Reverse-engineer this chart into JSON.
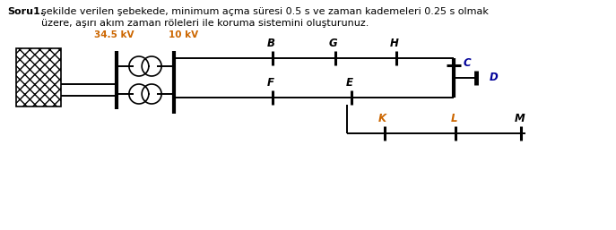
{
  "title_bold": "Soru1.",
  "title_normal": " şekilde verilen şebekede, minimum açma süresi 0.5 s ve zaman kademeleri 0.25 s olmak",
  "subtitle": "üzere, aşırı akım zaman röleleri ile koruma sistemini oluşturunuz.",
  "label_34kV": "34.5 kV",
  "label_10kV": "10 kV",
  "label_colors": {
    "B": "#000000",
    "G": "#000000",
    "H": "#000000",
    "C": "#000099",
    "D": "#000099",
    "F": "#000000",
    "E": "#000000",
    "K": "#cc6600",
    "L": "#cc6600",
    "M": "#000000"
  },
  "kv_color": "#cc6600",
  "bg_color": "#ffffff",
  "line_color": "#000000",
  "lw": 1.4,
  "bus_lw": 2.8
}
